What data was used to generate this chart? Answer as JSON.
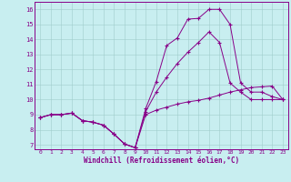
{
  "bg_color": "#c8eef0",
  "line_color_dark": "#880088",
  "line_color_light": "#cc44cc",
  "xlabel": "Windchill (Refroidissement éolien,°C)",
  "xlim": [
    -0.5,
    23.5
  ],
  "ylim": [
    6.7,
    16.5
  ],
  "yticks": [
    7,
    8,
    9,
    10,
    11,
    12,
    13,
    14,
    15,
    16
  ],
  "xticks": [
    0,
    1,
    2,
    3,
    4,
    5,
    6,
    7,
    8,
    9,
    10,
    11,
    12,
    13,
    14,
    15,
    16,
    17,
    18,
    19,
    20,
    21,
    22,
    23
  ],
  "line1_x": [
    0,
    1,
    2,
    3,
    4,
    5,
    6,
    7,
    8,
    9,
    10,
    11,
    12,
    13,
    14,
    15,
    16,
    17,
    18,
    19,
    20,
    21,
    22,
    23
  ],
  "line1_y": [
    8.8,
    9.0,
    9.0,
    9.1,
    8.6,
    8.5,
    8.3,
    7.7,
    7.05,
    6.8,
    9.4,
    11.2,
    13.6,
    14.1,
    15.35,
    15.4,
    16.0,
    16.0,
    15.0,
    11.1,
    10.5,
    10.5,
    10.2,
    10.0
  ],
  "line2_x": [
    0,
    1,
    2,
    3,
    4,
    5,
    6,
    7,
    8,
    9,
    10,
    11,
    12,
    13,
    14,
    15,
    16,
    17,
    18,
    19,
    20,
    21,
    22,
    23
  ],
  "line2_y": [
    8.8,
    9.0,
    9.0,
    9.1,
    8.6,
    8.5,
    8.3,
    7.7,
    7.05,
    6.8,
    9.0,
    9.3,
    9.5,
    9.7,
    9.85,
    9.95,
    10.1,
    10.3,
    10.5,
    10.65,
    10.8,
    10.85,
    10.9,
    10.0
  ],
  "line3_x": [
    0,
    1,
    2,
    3,
    4,
    5,
    6,
    7,
    8,
    9,
    10,
    11,
    12,
    13,
    14,
    15,
    16,
    17,
    18,
    19,
    20,
    21,
    22,
    23
  ],
  "line3_y": [
    8.8,
    9.0,
    9.0,
    9.1,
    8.6,
    8.5,
    8.3,
    7.7,
    7.05,
    6.8,
    9.2,
    10.5,
    11.5,
    12.4,
    13.15,
    13.8,
    14.5,
    13.8,
    11.1,
    10.5,
    10.0,
    10.0,
    10.0,
    10.0
  ]
}
